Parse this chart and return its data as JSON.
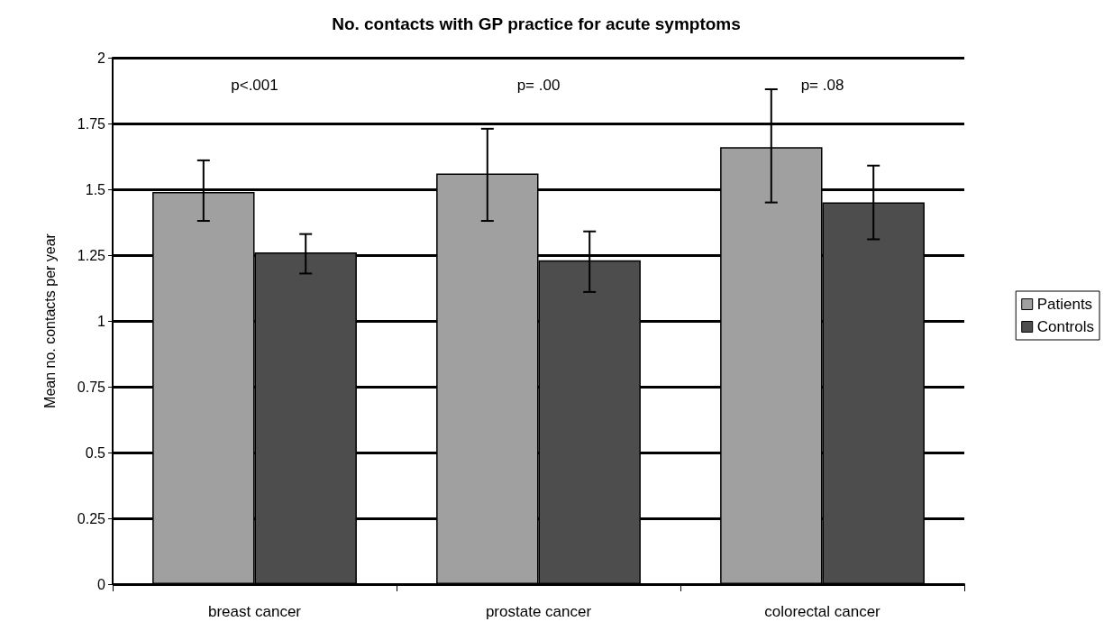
{
  "chart_data": {
    "type": "bar",
    "title": "No. contacts with GP practice for acute symptoms",
    "ylabel": "Mean no. contacts per year",
    "categories": [
      "breast cancer",
      "prostate cancer",
      "colorectal cancer"
    ],
    "series": [
      {
        "name": "Patients",
        "color": "#a0a0a0",
        "values": [
          1.49,
          1.56,
          1.66
        ],
        "errors": [
          [
            1.38,
            1.61
          ],
          [
            1.38,
            1.73
          ],
          [
            1.45,
            1.88
          ]
        ]
      },
      {
        "name": "Controls",
        "color": "#4d4d4d",
        "values": [
          1.26,
          1.23,
          1.45
        ],
        "errors": [
          [
            1.18,
            1.33
          ],
          [
            1.11,
            1.34
          ],
          [
            1.31,
            1.59
          ]
        ]
      }
    ],
    "ylim": [
      0,
      2
    ],
    "yticks": [
      0,
      0.25,
      0.5,
      0.75,
      1,
      1.25,
      1.5,
      1.75,
      2
    ],
    "annotations": [
      "p<.001",
      "p= .00",
      "p= .08"
    ],
    "grid": "y",
    "legend": "right"
  }
}
